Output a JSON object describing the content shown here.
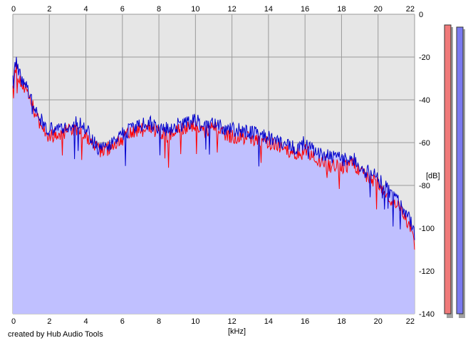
{
  "credit": "created by Hub Audio Tools",
  "chart_data": {
    "type": "area",
    "xlabel": "[kHz]",
    "ylabel": "[dB]",
    "xlim": [
      0,
      22
    ],
    "ylim": [
      -140,
      0
    ],
    "x_ticks": [
      "0",
      "2",
      "4",
      "6",
      "8",
      "10",
      "12",
      "14",
      "16",
      "18",
      "20",
      "22"
    ],
    "y_ticks": [
      "0",
      "-20",
      "-40",
      "-60",
      "-80",
      "-100",
      "-120",
      "-140"
    ],
    "grid": true,
    "x_axis_position": "top and bottom",
    "y_axis_position": "right",
    "colors": {
      "plot_background": "#e6e6e6",
      "fill": "#c0c0ff",
      "grid": "#9a9a9a",
      "left_channel": "#ff0000",
      "right_channel": "#0000cc"
    },
    "series": [
      {
        "color": "#ff0000",
        "x": [
          0,
          0.2,
          0.4,
          0.6,
          0.8,
          1,
          1.2,
          1.5,
          2,
          2.5,
          3,
          3.5,
          4,
          4.3,
          4.6,
          5,
          5.5,
          6,
          6.5,
          7,
          7.5,
          8,
          8.5,
          9,
          9.5,
          10,
          10.5,
          11,
          11.5,
          12,
          12.5,
          13,
          13.5,
          14,
          14.5,
          15,
          15.5,
          16,
          16.5,
          17,
          17.5,
          18,
          18.5,
          19,
          19.5,
          20,
          20.5,
          21,
          21.5,
          21.8,
          22
        ],
        "y": [
          -30,
          -26,
          -31,
          -35,
          -38,
          -41,
          -46,
          -52,
          -57,
          -56,
          -55,
          -54,
          -56,
          -60,
          -63,
          -64,
          -61,
          -58,
          -56,
          -54,
          -53,
          -55,
          -57,
          -54,
          -53,
          -52,
          -55,
          -53,
          -56,
          -57,
          -57,
          -58,
          -59,
          -60,
          -62,
          -64,
          -66,
          -64,
          -67,
          -69,
          -71,
          -71,
          -70,
          -72,
          -76,
          -79,
          -85,
          -89,
          -95,
          -101,
          -108
        ]
      },
      {
        "color": "#0000cc",
        "x": [
          0,
          0.2,
          0.4,
          0.6,
          0.8,
          1,
          1.2,
          1.5,
          2,
          2.5,
          3,
          3.5,
          4,
          4.3,
          4.6,
          5,
          5.5,
          6,
          6.5,
          7,
          7.5,
          8,
          8.5,
          9,
          9.5,
          10,
          10.5,
          11,
          11.5,
          12,
          12.5,
          13,
          13.5,
          14,
          14.5,
          15,
          15.5,
          16,
          16.5,
          17,
          17.5,
          18,
          18.5,
          19,
          19.5,
          20,
          20.5,
          21,
          21.5,
          21.8,
          22
        ],
        "y": [
          -27,
          -23,
          -29,
          -32,
          -35,
          -38,
          -43,
          -49,
          -54,
          -53,
          -52,
          -51,
          -53,
          -58,
          -62,
          -63,
          -60,
          -56,
          -54,
          -52,
          -51,
          -53,
          -54,
          -52,
          -51,
          -49,
          -53,
          -51,
          -53,
          -54,
          -54,
          -55,
          -56,
          -58,
          -59,
          -61,
          -63,
          -60,
          -64,
          -66,
          -67,
          -68,
          -67,
          -70,
          -73,
          -77,
          -82,
          -86,
          -92,
          -97,
          -103
        ]
      }
    ],
    "level_meters": [
      {
        "color": "#f07a7a",
        "value_db": -5
      },
      {
        "color": "#7a7af0",
        "value_db": -6
      }
    ]
  }
}
